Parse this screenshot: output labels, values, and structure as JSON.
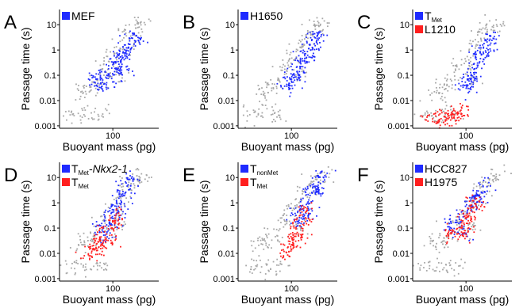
{
  "figure": {
    "background": "#ffffff",
    "colors": {
      "blue": "#1f2bff",
      "red": "#ff1f1f",
      "gray": "#a8a8a8"
    }
  },
  "chart_data": [
    {
      "type": "scatter",
      "panel": "A",
      "xlabel": "Buoyant mass (pg)",
      "ylabel": "Passage time (s)",
      "x_scale": "log",
      "y_scale": "log",
      "x_ticks": [
        {
          "value": 100,
          "label": "100"
        }
      ],
      "y_ticks": [
        {
          "value": 0.001,
          "label": "0.001"
        },
        {
          "value": 0.01,
          "label": "0.01"
        },
        {
          "value": 0.1,
          "label": "0.1"
        },
        {
          "value": 1,
          "label": "1"
        },
        {
          "value": 10,
          "label": "10"
        }
      ],
      "xlim": [
        20,
        400
      ],
      "ylim": [
        0.0008,
        40
      ],
      "legend_position": "top-left",
      "series": [
        {
          "legend_label": "MEF",
          "color": "#1f2bff",
          "points": [
            [
              60,
              0.08
            ],
            [
              80,
              0.12
            ],
            [
              100,
              0.3
            ],
            [
              120,
              0.5
            ],
            [
              150,
              1.0
            ],
            [
              180,
              2.0
            ],
            [
              90,
              0.05
            ],
            [
              110,
              0.2
            ],
            [
              140,
              0.7
            ],
            [
              200,
              3.0
            ],
            [
              70,
              0.04
            ],
            [
              130,
              0.15
            ]
          ]
        }
      ],
      "background_series": {
        "color": "#a8a8a8",
        "points": [
          [
            40,
            0.02
          ],
          [
            60,
            0.05
          ],
          [
            80,
            0.2
          ],
          [
            100,
            0.5
          ],
          [
            130,
            1.5
          ],
          [
            160,
            4
          ],
          [
            200,
            8
          ],
          [
            50,
            0.03
          ],
          [
            120,
            0.1
          ],
          [
            250,
            10
          ],
          [
            30,
            0.003
          ],
          [
            45,
            0.003
          ],
          [
            70,
            0.003
          ]
        ]
      }
    },
    {
      "type": "scatter",
      "panel": "B",
      "xlabel": "Buoyant mass (pg)",
      "ylabel": "Passage time (s)",
      "x_scale": "log",
      "y_scale": "log",
      "x_ticks": [
        {
          "value": 100,
          "label": "100"
        }
      ],
      "y_ticks": [
        {
          "value": 0.001,
          "label": "0.001"
        },
        {
          "value": 0.01,
          "label": "0.01"
        },
        {
          "value": 0.1,
          "label": "0.1"
        },
        {
          "value": 1,
          "label": "1"
        },
        {
          "value": 10,
          "label": "10"
        }
      ],
      "xlim": [
        20,
        400
      ],
      "ylim": [
        0.0008,
        40
      ],
      "legend_position": "top-left",
      "series": [
        {
          "legend_label": "H1650",
          "color": "#1f2bff",
          "points": [
            [
              90,
              0.04
            ],
            [
              110,
              0.1
            ],
            [
              130,
              0.3
            ],
            [
              150,
              0.6
            ],
            [
              180,
              1.2
            ],
            [
              200,
              2.5
            ],
            [
              120,
              0.08
            ],
            [
              160,
              0.4
            ],
            [
              220,
              4
            ],
            [
              100,
              0.05
            ]
          ]
        }
      ],
      "background_series": {
        "color": "#a8a8a8",
        "points": [
          [
            40,
            0.02
          ],
          [
            60,
            0.05
          ],
          [
            80,
            0.2
          ],
          [
            100,
            0.5
          ],
          [
            130,
            1.5
          ],
          [
            160,
            4
          ],
          [
            200,
            8
          ],
          [
            50,
            0.03
          ],
          [
            120,
            0.1
          ],
          [
            250,
            10
          ],
          [
            30,
            0.003
          ],
          [
            45,
            0.003
          ],
          [
            70,
            0.003
          ]
        ]
      }
    },
    {
      "type": "scatter",
      "panel": "C",
      "xlabel": "Buoyant mass (pg)",
      "ylabel": "Passage time (s)",
      "x_scale": "log",
      "y_scale": "log",
      "x_ticks": [
        {
          "value": 100,
          "label": "100"
        }
      ],
      "y_ticks": [
        {
          "value": 0.001,
          "label": "0.001"
        },
        {
          "value": 0.01,
          "label": "0.01"
        },
        {
          "value": 0.1,
          "label": "0.1"
        },
        {
          "value": 1,
          "label": "1"
        },
        {
          "value": 10,
          "label": "10"
        }
      ],
      "xlim": [
        20,
        400
      ],
      "ylim": [
        0.0008,
        40
      ],
      "legend_position": "top-left",
      "series": [
        {
          "legend_label": "T",
          "legend_sub": "Met",
          "color": "#1f2bff",
          "points": [
            [
              100,
              0.05
            ],
            [
              120,
              0.1
            ],
            [
              140,
              0.3
            ],
            [
              160,
              0.8
            ],
            [
              190,
              1.5
            ],
            [
              220,
              3
            ],
            [
              130,
              0.08
            ],
            [
              170,
              0.6
            ],
            [
              110,
              0.03
            ]
          ]
        },
        {
          "legend_label": "L1210",
          "color": "#ff1f1f",
          "points": [
            [
              35,
              0.002
            ],
            [
              45,
              0.002
            ],
            [
              55,
              0.002
            ],
            [
              65,
              0.0025
            ],
            [
              75,
              0.003
            ],
            [
              85,
              0.003
            ]
          ]
        }
      ],
      "background_series": {
        "color": "#a8a8a8",
        "points": [
          [
            40,
            0.02
          ],
          [
            60,
            0.05
          ],
          [
            80,
            0.2
          ],
          [
            100,
            0.5
          ],
          [
            130,
            1.5
          ],
          [
            160,
            4
          ],
          [
            200,
            8
          ],
          [
            50,
            0.03
          ],
          [
            120,
            0.1
          ],
          [
            250,
            10
          ],
          [
            30,
            0.003
          ],
          [
            45,
            0.003
          ],
          [
            70,
            0.003
          ]
        ]
      }
    },
    {
      "type": "scatter",
      "panel": "D",
      "xlabel": "Buoyant mass (pg)",
      "ylabel": "Passage time (s)",
      "x_scale": "log",
      "y_scale": "log",
      "x_ticks": [
        {
          "value": 100,
          "label": "100"
        }
      ],
      "y_ticks": [
        {
          "value": 0.001,
          "label": "0.001"
        },
        {
          "value": 0.01,
          "label": "0.01"
        },
        {
          "value": 0.1,
          "label": "0.1"
        },
        {
          "value": 1,
          "label": "1"
        },
        {
          "value": 10,
          "label": "10"
        }
      ],
      "xlim": [
        20,
        400
      ],
      "ylim": [
        0.0008,
        40
      ],
      "legend_position": "top-left",
      "series": [
        {
          "legend_label": "T",
          "legend_sub": "Met",
          "legend_suffix": "-Nkx2-1",
          "color": "#1f2bff",
          "points": [
            [
              70,
              0.1
            ],
            [
              90,
              0.3
            ],
            [
              110,
              0.8
            ],
            [
              130,
              2
            ],
            [
              150,
              4
            ],
            [
              180,
              8
            ],
            [
              100,
              0.15
            ],
            [
              120,
              0.5
            ],
            [
              80,
              0.05
            ]
          ]
        },
        {
          "legend_label": "T",
          "legend_sub": "Met",
          "color": "#ff1f1f",
          "points": [
            [
              50,
              0.01
            ],
            [
              60,
              0.02
            ],
            [
              70,
              0.04
            ],
            [
              80,
              0.08
            ],
            [
              100,
              0.15
            ],
            [
              120,
              0.3
            ],
            [
              90,
              0.02
            ],
            [
              65,
              0.015
            ]
          ]
        }
      ],
      "background_series": {
        "color": "#a8a8a8",
        "points": [
          [
            40,
            0.02
          ],
          [
            60,
            0.05
          ],
          [
            80,
            0.2
          ],
          [
            100,
            0.5
          ],
          [
            130,
            1.5
          ],
          [
            160,
            4
          ],
          [
            200,
            8
          ],
          [
            50,
            0.03
          ],
          [
            120,
            0.1
          ],
          [
            250,
            10
          ],
          [
            30,
            0.003
          ],
          [
            45,
            0.003
          ],
          [
            70,
            0.003
          ]
        ]
      }
    },
    {
      "type": "scatter",
      "panel": "E",
      "xlabel": "Buoyant mass (pg)",
      "ylabel": "Passage time (s)",
      "x_scale": "log",
      "y_scale": "log",
      "x_ticks": [
        {
          "value": 100,
          "label": "100"
        }
      ],
      "y_ticks": [
        {
          "value": 0.001,
          "label": "0.001"
        },
        {
          "value": 0.01,
          "label": "0.01"
        },
        {
          "value": 0.1,
          "label": "0.1"
        },
        {
          "value": 1,
          "label": "1"
        },
        {
          "value": 10,
          "label": "10"
        }
      ],
      "xlim": [
        20,
        400
      ],
      "ylim": [
        0.0008,
        40
      ],
      "legend_position": "top-left",
      "series": [
        {
          "legend_label": "T",
          "legend_sub": "nonMet",
          "color": "#1f2bff",
          "points": [
            [
              120,
              0.2
            ],
            [
              140,
              0.5
            ],
            [
              160,
              1
            ],
            [
              180,
              2.5
            ],
            [
              210,
              6
            ],
            [
              240,
              12
            ],
            [
              150,
              0.3
            ],
            [
              200,
              3
            ]
          ]
        },
        {
          "legend_label": "T",
          "legend_sub": "Met",
          "color": "#ff1f1f",
          "points": [
            [
              80,
              0.01
            ],
            [
              100,
              0.03
            ],
            [
              120,
              0.08
            ],
            [
              140,
              0.2
            ],
            [
              160,
              0.5
            ],
            [
              110,
              0.02
            ],
            [
              130,
              0.05
            ]
          ]
        }
      ],
      "background_series": {
        "color": "#a8a8a8",
        "points": [
          [
            40,
            0.02
          ],
          [
            60,
            0.05
          ],
          [
            80,
            0.2
          ],
          [
            100,
            0.5
          ],
          [
            130,
            1.5
          ],
          [
            160,
            4
          ],
          [
            200,
            8
          ],
          [
            50,
            0.03
          ],
          [
            120,
            0.1
          ],
          [
            250,
            10
          ],
          [
            30,
            0.003
          ],
          [
            45,
            0.003
          ],
          [
            70,
            0.003
          ]
        ]
      }
    },
    {
      "type": "scatter",
      "panel": "F",
      "xlabel": "Buoyant mass (pg)",
      "ylabel": "Passage time (s)",
      "x_scale": "log",
      "y_scale": "log",
      "x_ticks": [
        {
          "value": 100,
          "label": "100"
        }
      ],
      "y_ticks": [
        {
          "value": 0.001,
          "label": "0.001"
        },
        {
          "value": 0.01,
          "label": "0.01"
        },
        {
          "value": 0.1,
          "label": "0.1"
        },
        {
          "value": 1,
          "label": "1"
        },
        {
          "value": 10,
          "label": "10"
        }
      ],
      "xlim": [
        20,
        400
      ],
      "ylim": [
        0.0008,
        40
      ],
      "legend_position": "top-left",
      "series": [
        {
          "legend_label": "HCC827",
          "color": "#1f2bff",
          "points": [
            [
              60,
              0.1
            ],
            [
              80,
              0.2
            ],
            [
              100,
              0.5
            ],
            [
              120,
              1
            ],
            [
              150,
              2
            ],
            [
              180,
              4
            ],
            [
              90,
              0.08
            ],
            [
              140,
              1.5
            ]
          ]
        },
        {
          "legend_label": "H1975",
          "color": "#ff1f1f",
          "points": [
            [
              60,
              0.05
            ],
            [
              80,
              0.1
            ],
            [
              100,
              0.3
            ],
            [
              120,
              0.6
            ],
            [
              140,
              1
            ],
            [
              90,
              0.06
            ],
            [
              110,
              0.15
            ]
          ]
        }
      ],
      "background_series": {
        "color": "#a8a8a8",
        "points": [
          [
            40,
            0.02
          ],
          [
            60,
            0.05
          ],
          [
            80,
            0.2
          ],
          [
            100,
            0.5
          ],
          [
            130,
            1.5
          ],
          [
            160,
            4
          ],
          [
            200,
            8
          ],
          [
            50,
            0.03
          ],
          [
            120,
            0.1
          ],
          [
            250,
            10
          ],
          [
            30,
            0.003
          ],
          [
            45,
            0.003
          ],
          [
            70,
            0.003
          ]
        ]
      }
    }
  ]
}
